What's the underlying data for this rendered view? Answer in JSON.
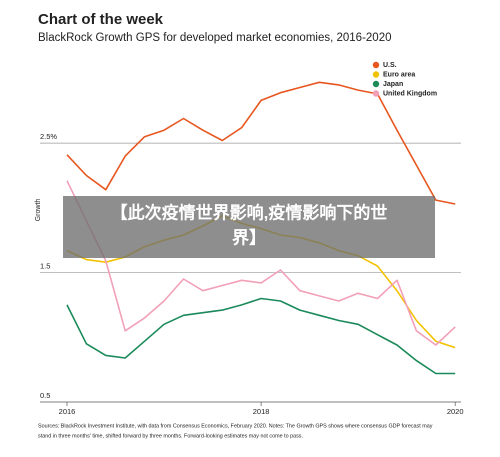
{
  "chart_data": {
    "type": "line",
    "title": "Chart of the week",
    "subtitle": "BlackRock Growth GPS for developed market economies, 2016-2020",
    "ylabel": "Growth",
    "x": [
      2016,
      2016.2,
      2016.4,
      2016.6,
      2016.8,
      2017,
      2017.2,
      2017.4,
      2017.6,
      2017.8,
      2018,
      2018.2,
      2018.4,
      2018.6,
      2018.8,
      2019,
      2019.2,
      2019.4,
      2019.6,
      2019.8,
      2020
    ],
    "series": [
      {
        "name": "U.S.",
        "color": "#e8561f",
        "values": [
          2.41,
          2.25,
          2.14,
          2.4,
          2.55,
          2.6,
          2.69,
          2.6,
          2.52,
          2.62,
          2.83,
          2.89,
          2.93,
          2.97,
          2.95,
          2.91,
          2.88,
          2.6,
          2.33,
          2.06,
          2.03
        ]
      },
      {
        "name": "Euro area",
        "color": "#f2c200",
        "values": [
          1.67,
          1.6,
          1.58,
          1.62,
          1.7,
          1.75,
          1.79,
          1.86,
          1.94,
          1.88,
          1.84,
          1.79,
          1.77,
          1.73,
          1.67,
          1.63,
          1.55,
          1.36,
          1.13,
          0.97,
          0.92
        ]
      },
      {
        "name": "Japan",
        "color": "#1a8a5a",
        "values": [
          1.25,
          0.95,
          0.86,
          0.84,
          0.97,
          1.1,
          1.17,
          1.19,
          1.21,
          1.25,
          1.3,
          1.28,
          1.21,
          1.17,
          1.13,
          1.1,
          1.02,
          0.94,
          0.82,
          0.72,
          0.72
        ]
      },
      {
        "name": "United Kingdom",
        "color": "#f2a0b8",
        "values": [
          2.21,
          1.9,
          1.59,
          1.05,
          1.15,
          1.28,
          1.45,
          1.36,
          1.4,
          1.44,
          1.42,
          1.52,
          1.36,
          1.32,
          1.28,
          1.34,
          1.3,
          1.44,
          1.05,
          0.94,
          1.08
        ]
      }
    ],
    "xlim": [
      2016,
      2020.06
    ],
    "xticks": [
      2016,
      2018,
      2020
    ],
    "ylim": [
      0.5,
      3.15
    ],
    "yticks": [
      {
        "value": 2.5,
        "label": "2.5%"
      },
      1.5,
      0.5
    ],
    "grid": true,
    "legend": "top-right",
    "notes": [
      "Sources: BlackRock Investment Institute, with data from Consensus Economics, February 2020. Notes: The Growth GPS shows where consensus GDP forecast may",
      "stand in three months' time, shifted forward by three months. Forward-looking estimates may not come to pass."
    ]
  },
  "overlay": {
    "lines": [
      "【此次疫情世界影响,疫情影响下的世",
      "界】"
    ]
  }
}
